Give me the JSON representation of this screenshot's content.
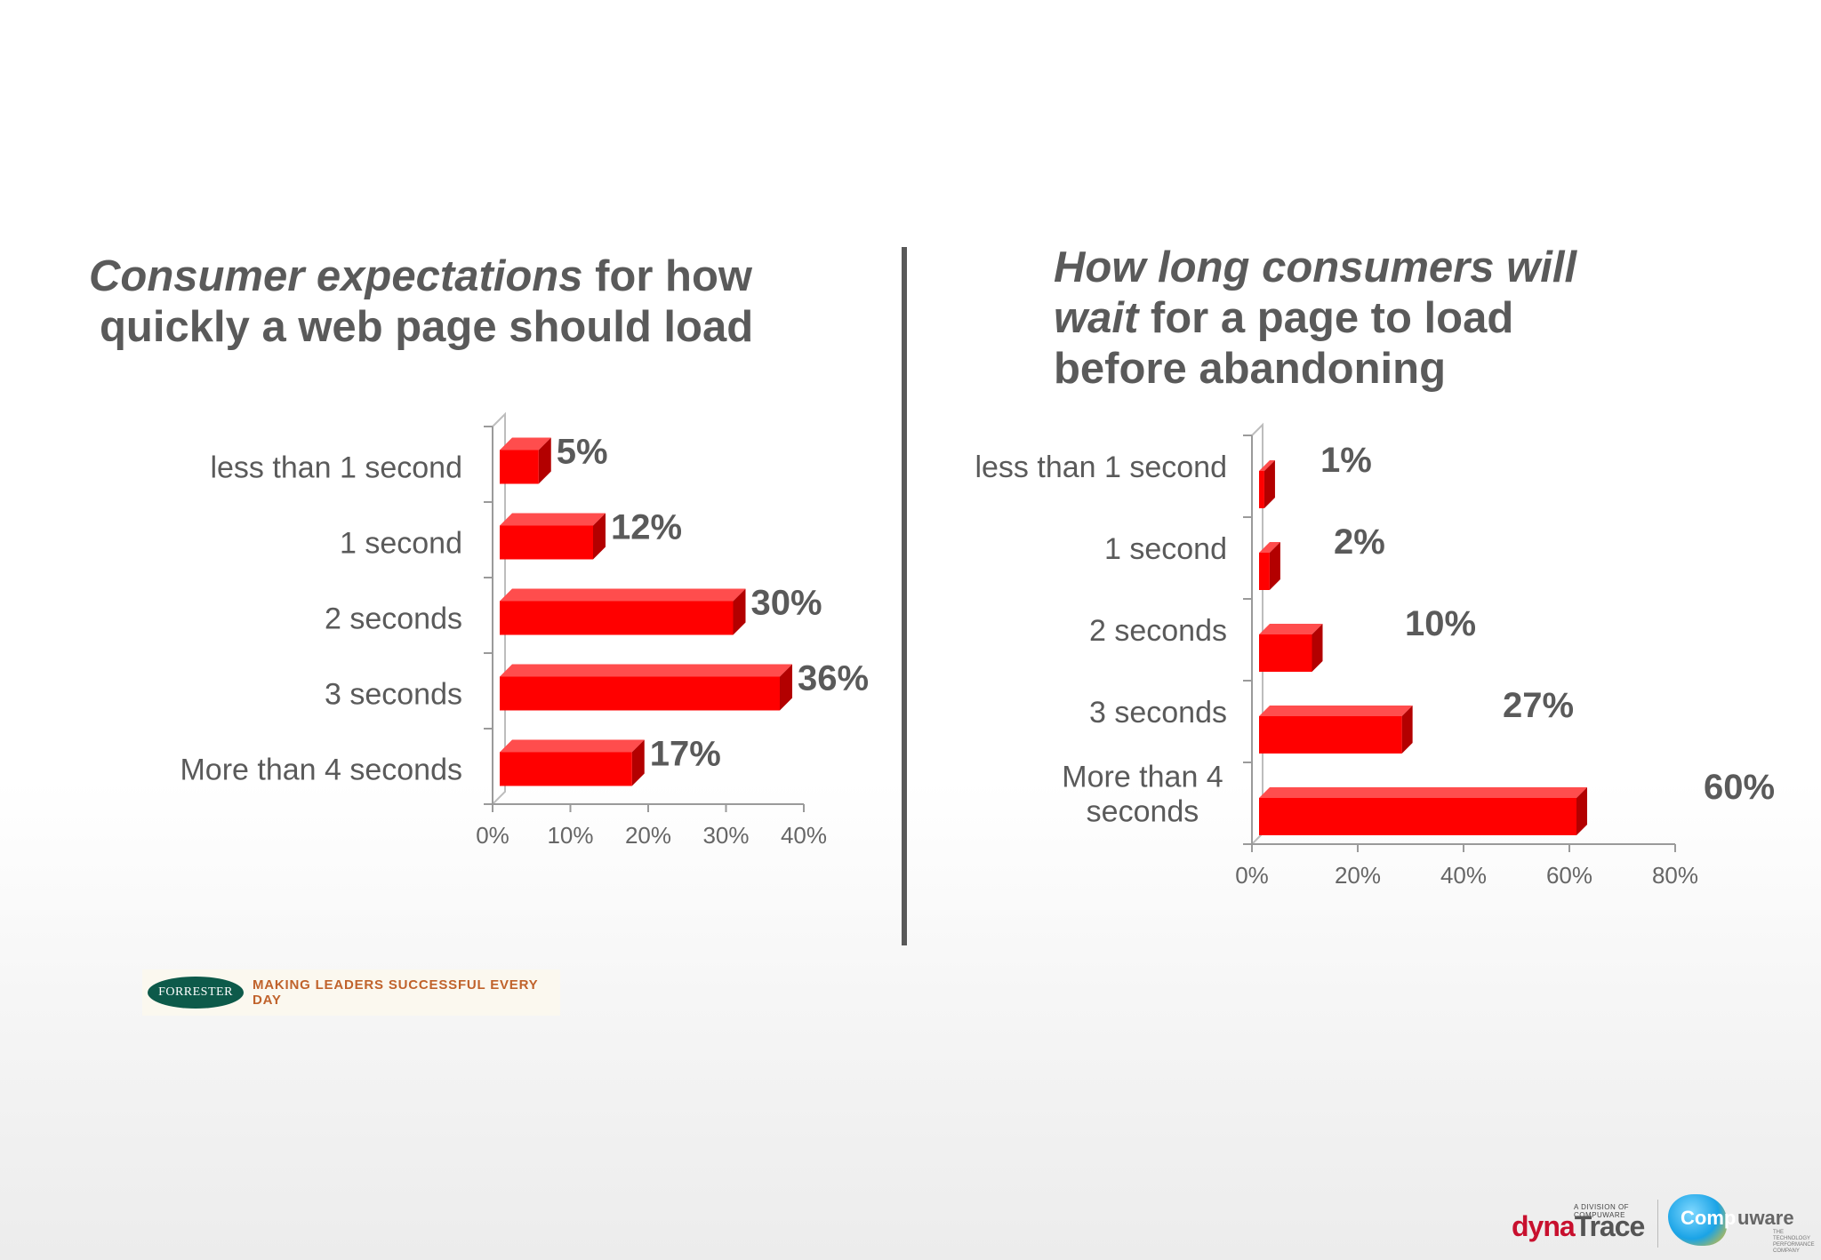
{
  "left_title": {
    "emph": "Consumer expectations",
    "rest": " for how",
    "line2": "quickly a web page should load"
  },
  "right_title": {
    "emph1": "How long consumers will",
    "emph2": "wait",
    "rest2": " for a page to load",
    "line3": "before abandoning"
  },
  "chart_data": [
    {
      "type": "bar",
      "orientation": "horizontal",
      "title": "Consumer expectations for how quickly a web page should load",
      "categories": [
        "less than 1 second",
        "1 second",
        "2 seconds",
        "3 seconds",
        "More than 4 seconds"
      ],
      "values": [
        5,
        12,
        30,
        36,
        17
      ],
      "data_labels": [
        "5%",
        "12%",
        "30%",
        "36%",
        "17%"
      ],
      "xlim": [
        0,
        40
      ],
      "xticks": [
        0,
        10,
        20,
        30,
        40
      ],
      "xtick_labels": [
        "0%",
        "10%",
        "20%",
        "30%",
        "40%"
      ],
      "grid": false,
      "bar_color": "#ff0000"
    },
    {
      "type": "bar",
      "orientation": "horizontal",
      "title": "How long consumers will wait for a page to load before abandoning",
      "categories": [
        "less than 1 second",
        "1 second",
        "2 seconds",
        "3 seconds",
        "More than 4 seconds"
      ],
      "category_lines": [
        [
          "less than 1 second"
        ],
        [
          "1 second"
        ],
        [
          "2 seconds"
        ],
        [
          "3 seconds"
        ],
        [
          "More than 4",
          "seconds"
        ]
      ],
      "values": [
        1,
        2,
        10,
        27,
        60
      ],
      "data_labels": [
        "1%",
        "2%",
        "10%",
        "27%",
        "60%"
      ],
      "xlim": [
        0,
        80
      ],
      "xticks": [
        0,
        20,
        40,
        60,
        80
      ],
      "xtick_labels": [
        "0%",
        "20%",
        "40%",
        "60%",
        "80%"
      ],
      "grid": false,
      "bar_color": "#ff0000"
    }
  ],
  "logos": {
    "forrester_name": "FORRESTER",
    "forrester_tagline": "MAKING LEADERS SUCCESSFUL EVERY DAY",
    "dynatrace_small": "A DIVISION OF COMPUWARE",
    "dynatrace_a": "dyna",
    "dynatrace_b": "Trace",
    "compuware_a": "Comp",
    "compuware_b": "uware",
    "compuware_small": "THE TECHNOLOGY PERFORMANCE COMPANY"
  },
  "colors": {
    "text": "#5a5a5a",
    "divider": "#595959",
    "bar": "#ff0000"
  }
}
